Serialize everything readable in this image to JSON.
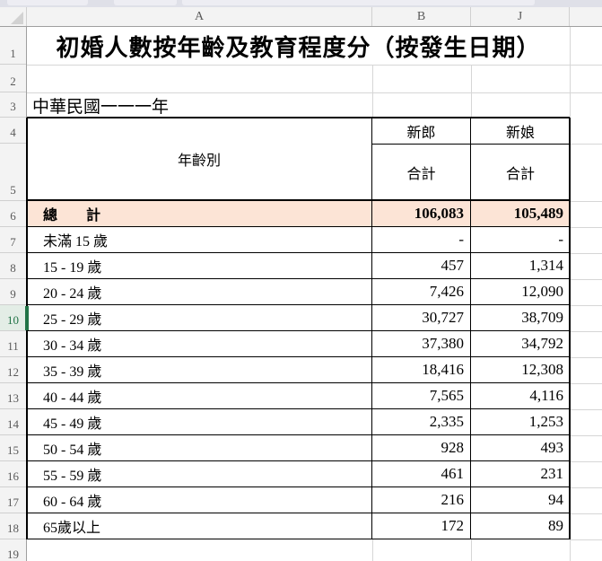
{
  "title": "初婚人數按年齡及教育程度分（按發生日期）",
  "subtitle": "中華民國一一一年",
  "grid": {
    "column_letters": [
      "A",
      "B",
      "J"
    ],
    "row_numbers": [
      "1",
      "2",
      "3",
      "4",
      "5",
      "6",
      "7",
      "8",
      "9",
      "10",
      "11",
      "12",
      "13",
      "14",
      "15",
      "16",
      "17",
      "18",
      "19"
    ],
    "active_row": "10"
  },
  "table": {
    "header": {
      "age_group": "年齡別",
      "groom": "新郎",
      "bride": "新娘",
      "groom_total": "合計",
      "bride_total": "合計"
    },
    "total_row": {
      "label": "總　　計",
      "groom": "106,083",
      "bride": "105,489"
    },
    "rows": [
      {
        "label": "未滿 15 歲",
        "groom": "-",
        "bride": "-"
      },
      {
        "label": "15 - 19 歲",
        "groom": "457",
        "bride": "1,314"
      },
      {
        "label": "20 - 24 歲",
        "groom": "7,426",
        "bride": "12,090"
      },
      {
        "label": "25 - 29 歲",
        "groom": "30,727",
        "bride": "38,709"
      },
      {
        "label": "30 - 34 歲",
        "groom": "37,380",
        "bride": "34,792"
      },
      {
        "label": "35 - 39 歲",
        "groom": "18,416",
        "bride": "12,308"
      },
      {
        "label": "40 - 44 歲",
        "groom": "7,565",
        "bride": "4,116"
      },
      {
        "label": "45 - 49 歲",
        "groom": "2,335",
        "bride": "1,253"
      },
      {
        "label": "50 - 54 歲",
        "groom": "928",
        "bride": "493"
      },
      {
        "label": "55 - 59 歲",
        "groom": "461",
        "bride": "231"
      },
      {
        "label": "60 - 64 歲",
        "groom": "216",
        "bride": "94"
      },
      {
        "label": "65歲以上",
        "groom": "172",
        "bride": "89"
      }
    ]
  },
  "colors": {
    "total_row_fill": "#fce4d6",
    "active_green": "#217346",
    "header_bg": "#f3f3f3"
  }
}
